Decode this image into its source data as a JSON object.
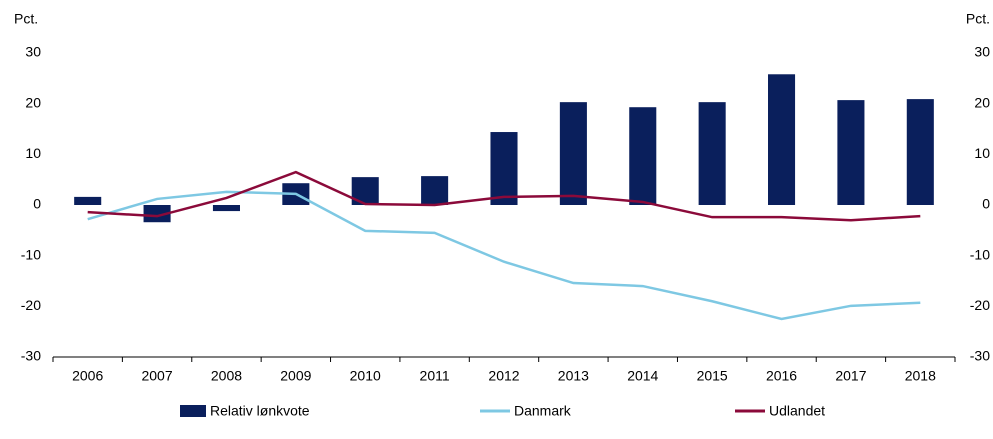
{
  "chart_data": {
    "type": "bar",
    "y_label": "Pct.",
    "y2_label": "Pct.",
    "categories": [
      "2006",
      "2007",
      "2008",
      "2009",
      "2010",
      "2011",
      "2012",
      "2013",
      "2014",
      "2015",
      "2016",
      "2017",
      "2018"
    ],
    "series": [
      {
        "name": "Relativ lønkvote",
        "type": "bar",
        "color": "#0a1f5c",
        "values": [
          1.6,
          -3.4,
          -1.2,
          4.3,
          5.5,
          5.7,
          14.4,
          20.3,
          19.3,
          20.3,
          25.8,
          20.7,
          20.9
        ]
      },
      {
        "name": "Danmark",
        "type": "line",
        "color": "#7ec8e3",
        "values": [
          -2.8,
          1.2,
          2.6,
          2.2,
          -5.1,
          -5.5,
          -11.2,
          -15.4,
          -16.0,
          -19.0,
          -22.5,
          -19.9,
          -19.3
        ]
      },
      {
        "name": "Udlandet",
        "type": "line",
        "color": "#8b0a3a",
        "values": [
          -1.4,
          -2.2,
          1.4,
          6.5,
          0.2,
          0,
          1.6,
          1.8,
          0.6,
          -2.4,
          -2.4,
          -3.0,
          -2.2
        ]
      }
    ],
    "ylim": [
      -30,
      30
    ],
    "yticks": [
      -30,
      -20,
      -10,
      0,
      10,
      20,
      30
    ],
    "y2lim": [
      -30,
      30
    ],
    "y2ticks": [
      -30,
      -20,
      -10,
      0,
      10,
      20,
      30
    ],
    "legend": "bottom"
  }
}
